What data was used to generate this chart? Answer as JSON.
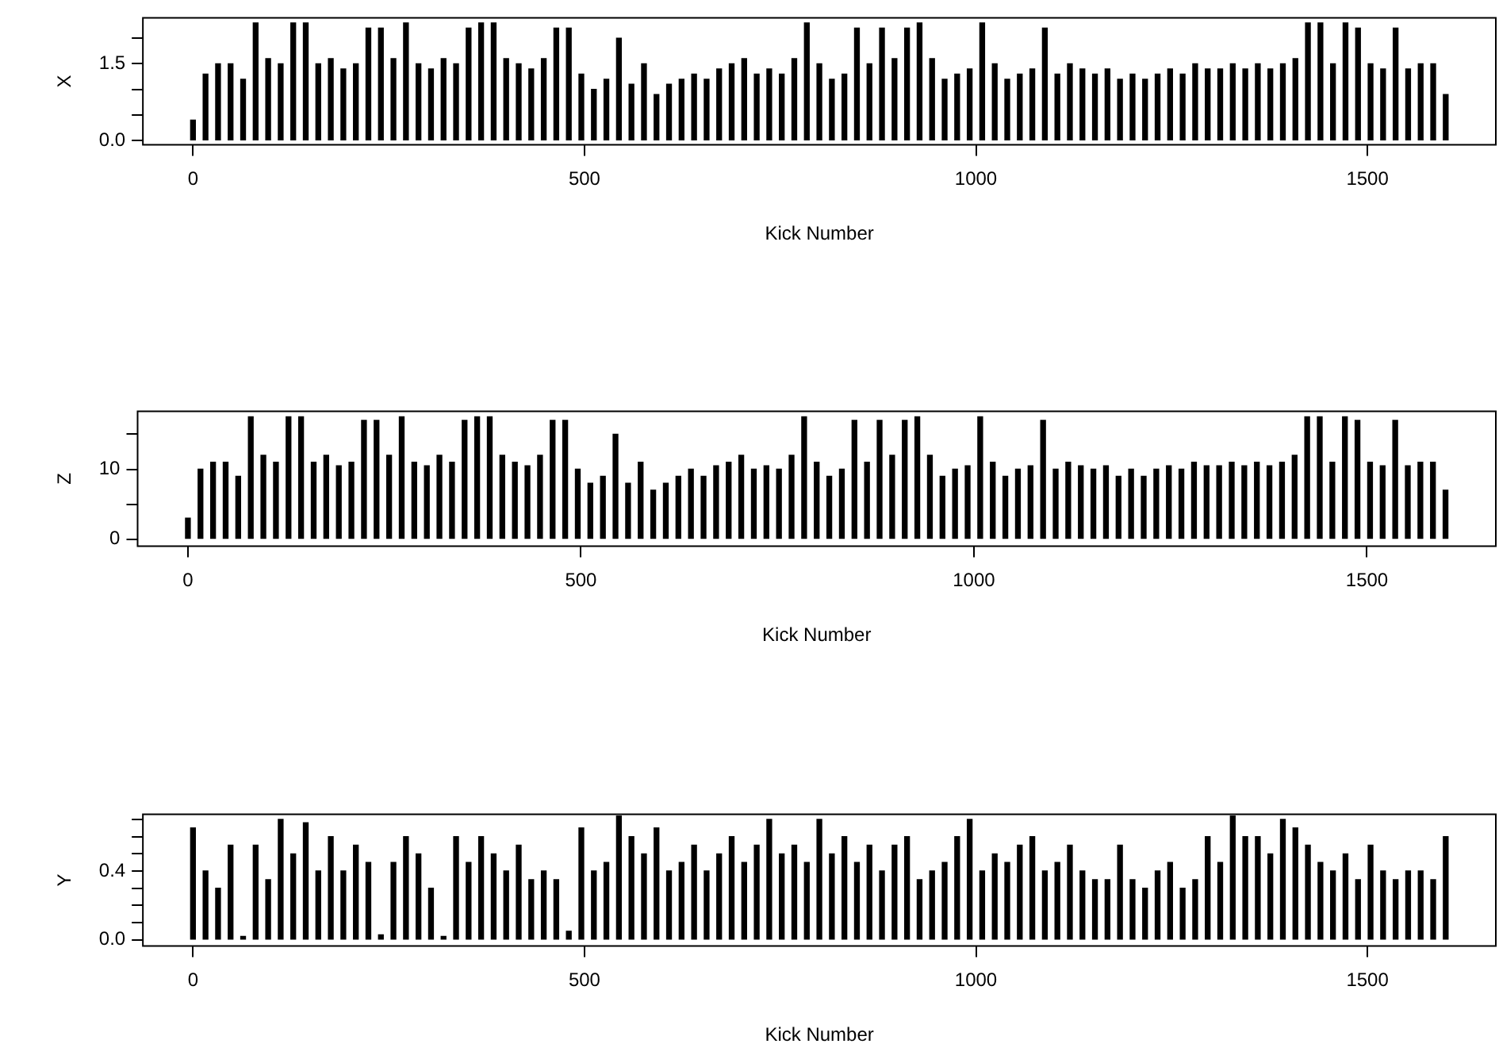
{
  "chart_data": [
    {
      "type": "bar",
      "xlabel": "Kick Number",
      "ylabel": "X",
      "color": "#000000",
      "grid": false,
      "x": [
        0,
        16,
        32,
        48,
        64,
        80,
        96,
        112,
        128,
        144,
        160,
        176,
        192,
        208,
        224,
        240,
        256,
        272,
        288,
        304,
        320,
        336,
        352,
        368,
        384,
        400,
        416,
        432,
        448,
        464,
        480,
        496,
        512,
        528,
        544,
        560,
        576,
        592,
        608,
        624,
        640,
        656,
        672,
        688,
        704,
        720,
        736,
        752,
        768,
        784,
        800,
        816,
        832,
        848,
        864,
        880,
        896,
        912,
        928,
        944,
        960,
        976,
        992,
        1008,
        1024,
        1040,
        1056,
        1072,
        1088,
        1104,
        1120,
        1136,
        1152,
        1168,
        1184,
        1200,
        1216,
        1232,
        1248,
        1264,
        1280,
        1296,
        1312,
        1328,
        1344,
        1360,
        1376,
        1392,
        1408,
        1424,
        1440,
        1456,
        1472,
        1488,
        1504,
        1520,
        1536,
        1552,
        1568,
        1584,
        1600
      ],
      "values": [
        0.4,
        1.3,
        1.5,
        1.5,
        1.2,
        2.3,
        1.6,
        1.5,
        2.3,
        2.3,
        1.5,
        1.6,
        1.4,
        1.5,
        2.2,
        2.2,
        1.6,
        2.3,
        1.5,
        1.4,
        1.6,
        1.5,
        2.2,
        2.3,
        2.3,
        1.6,
        1.5,
        1.4,
        1.6,
        2.2,
        2.2,
        1.3,
        1.0,
        1.2,
        2.0,
        1.1,
        1.5,
        0.9,
        1.1,
        1.2,
        1.3,
        1.2,
        1.4,
        1.5,
        1.6,
        1.3,
        1.4,
        1.3,
        1.6,
        2.3,
        1.5,
        1.2,
        1.3,
        2.2,
        1.5,
        2.2,
        1.6,
        2.2,
        2.3,
        1.6,
        1.2,
        1.3,
        1.4,
        2.3,
        1.5,
        1.2,
        1.3,
        1.4,
        2.2,
        1.3,
        1.5,
        1.4,
        1.3,
        1.4,
        1.2,
        1.3,
        1.2,
        1.3,
        1.4,
        1.3,
        1.5,
        1.4,
        1.4,
        1.5,
        1.4,
        1.5,
        1.4,
        1.5,
        1.6,
        2.3,
        2.3,
        1.5,
        2.3,
        2.2,
        1.5,
        1.4,
        2.2,
        1.4,
        1.5,
        1.5,
        0.9
      ],
      "xlim": [
        -64,
        1664
      ],
      "xticks": [
        0,
        500,
        1000,
        1500
      ],
      "ylim": [
        -0.08,
        2.4
      ],
      "yticks": [
        {
          "value": 0.0,
          "label": "0.0"
        },
        {
          "value": 0.5,
          "label": null
        },
        {
          "value": 1.0,
          "label": null
        },
        {
          "value": 1.5,
          "label": "1.5"
        },
        {
          "value": 2.0,
          "label": null
        }
      ]
    },
    {
      "type": "bar",
      "xlabel": "Kick Number",
      "ylabel": "Z",
      "color": "#000000",
      "grid": false,
      "x": [
        0,
        16,
        32,
        48,
        64,
        80,
        96,
        112,
        128,
        144,
        160,
        176,
        192,
        208,
        224,
        240,
        256,
        272,
        288,
        304,
        320,
        336,
        352,
        368,
        384,
        400,
        416,
        432,
        448,
        464,
        480,
        496,
        512,
        528,
        544,
        560,
        576,
        592,
        608,
        624,
        640,
        656,
        672,
        688,
        704,
        720,
        736,
        752,
        768,
        784,
        800,
        816,
        832,
        848,
        864,
        880,
        896,
        912,
        928,
        944,
        960,
        976,
        992,
        1008,
        1024,
        1040,
        1056,
        1072,
        1088,
        1104,
        1120,
        1136,
        1152,
        1168,
        1184,
        1200,
        1216,
        1232,
        1248,
        1264,
        1280,
        1296,
        1312,
        1328,
        1344,
        1360,
        1376,
        1392,
        1408,
        1424,
        1440,
        1456,
        1472,
        1488,
        1504,
        1520,
        1536,
        1552,
        1568,
        1584,
        1600
      ],
      "values": [
        3,
        10,
        11,
        11,
        9,
        17.5,
        12,
        11,
        17.5,
        17.5,
        11,
        12,
        10.5,
        11,
        17,
        17,
        12,
        17.5,
        11,
        10.5,
        12,
        11,
        17,
        17.5,
        17.5,
        12,
        11,
        10.5,
        12,
        17,
        17,
        10,
        8,
        9,
        15,
        8,
        11,
        7,
        8,
        9,
        10,
        9,
        10.5,
        11,
        12,
        10,
        10.5,
        10,
        12,
        17.5,
        11,
        9,
        10,
        17,
        11,
        17,
        12,
        17,
        17.5,
        12,
        9,
        10,
        10.5,
        17.5,
        11,
        9,
        10,
        10.5,
        17,
        10,
        11,
        10.5,
        10,
        10.5,
        9,
        10,
        9,
        10,
        10.5,
        10,
        11,
        10.5,
        10.5,
        11,
        10.5,
        11,
        10.5,
        11,
        12,
        17.5,
        17.5,
        11,
        17.5,
        17,
        11,
        10.5,
        17,
        10.5,
        11,
        11,
        7
      ],
      "xlim": [
        -64,
        1664
      ],
      "xticks": [
        0,
        500,
        1000,
        1500
      ],
      "ylim": [
        -1,
        18.3
      ],
      "yticks": [
        0,
        {
          "value": 5,
          "label": null
        },
        10,
        {
          "value": 15,
          "label": null
        }
      ]
    },
    {
      "type": "bar",
      "xlabel": "Kick Number",
      "ylabel": "Y",
      "color": "#000000",
      "grid": false,
      "x": [
        0,
        16,
        32,
        48,
        64,
        80,
        96,
        112,
        128,
        144,
        160,
        176,
        192,
        208,
        224,
        240,
        256,
        272,
        288,
        304,
        320,
        336,
        352,
        368,
        384,
        400,
        416,
        432,
        448,
        464,
        480,
        496,
        512,
        528,
        544,
        560,
        576,
        592,
        608,
        624,
        640,
        656,
        672,
        688,
        704,
        720,
        736,
        752,
        768,
        784,
        800,
        816,
        832,
        848,
        864,
        880,
        896,
        912,
        928,
        944,
        960,
        976,
        992,
        1008,
        1024,
        1040,
        1056,
        1072,
        1088,
        1104,
        1120,
        1136,
        1152,
        1168,
        1184,
        1200,
        1216,
        1232,
        1248,
        1264,
        1280,
        1296,
        1312,
        1328,
        1344,
        1360,
        1376,
        1392,
        1408,
        1424,
        1440,
        1456,
        1472,
        1488,
        1504,
        1520,
        1536,
        1552,
        1568,
        1584,
        1600
      ],
      "values": [
        0.65,
        0.4,
        0.3,
        0.55,
        0.02,
        0.55,
        0.35,
        0.7,
        0.5,
        0.68,
        0.4,
        0.6,
        0.4,
        0.55,
        0.45,
        0.03,
        0.45,
        0.6,
        0.5,
        0.3,
        0.02,
        0.6,
        0.45,
        0.6,
        0.5,
        0.4,
        0.55,
        0.35,
        0.4,
        0.35,
        0.05,
        0.65,
        0.4,
        0.45,
        0.72,
        0.6,
        0.5,
        0.65,
        0.4,
        0.45,
        0.55,
        0.4,
        0.5,
        0.6,
        0.45,
        0.55,
        0.7,
        0.5,
        0.55,
        0.45,
        0.7,
        0.5,
        0.6,
        0.45,
        0.55,
        0.4,
        0.55,
        0.6,
        0.35,
        0.4,
        0.45,
        0.6,
        0.7,
        0.4,
        0.5,
        0.45,
        0.55,
        0.6,
        0.4,
        0.45,
        0.55,
        0.4,
        0.35,
        0.35,
        0.55,
        0.35,
        0.3,
        0.4,
        0.45,
        0.3,
        0.35,
        0.6,
        0.45,
        0.72,
        0.6,
        0.6,
        0.5,
        0.7,
        0.65,
        0.55,
        0.45,
        0.4,
        0.5,
        0.35,
        0.55,
        0.4,
        0.35,
        0.4,
        0.4,
        0.35,
        0.6
      ],
      "xlim": [
        -64,
        1664
      ],
      "xticks": [
        0,
        500,
        1000,
        1500
      ],
      "ylim": [
        -0.035,
        0.73
      ],
      "yticks": [
        {
          "value": 0.0,
          "label": "0.0"
        },
        {
          "value": 0.1,
          "label": null
        },
        {
          "value": 0.2,
          "label": null
        },
        {
          "value": 0.3,
          "label": null
        },
        {
          "value": 0.4,
          "label": "0.4"
        },
        {
          "value": 0.5,
          "label": null
        },
        {
          "value": 0.6,
          "label": null
        },
        {
          "value": 0.7,
          "label": null
        }
      ]
    }
  ]
}
